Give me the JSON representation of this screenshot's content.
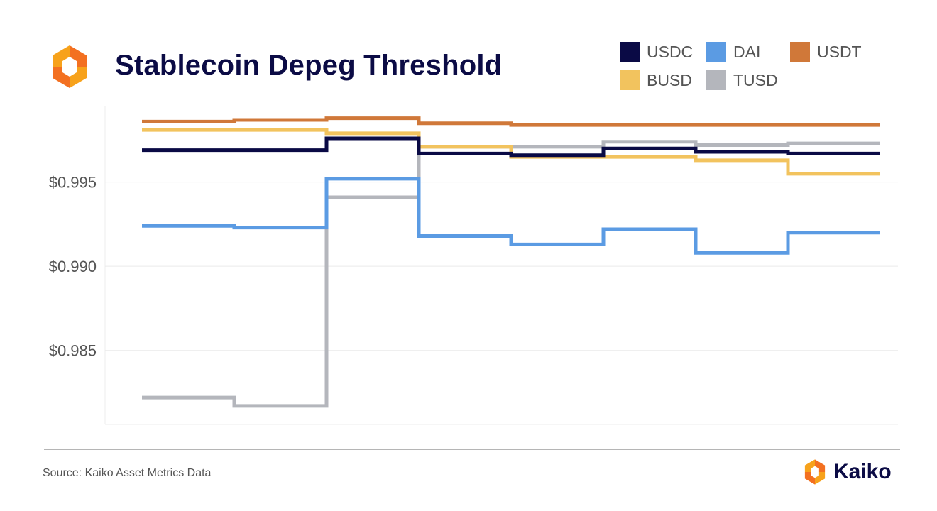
{
  "header": {
    "title": "Stablecoin Depeg Threshold"
  },
  "footer": {
    "source": "Source: Kaiko Asset Metrics Data",
    "brand": "Kaiko"
  },
  "icons": {
    "logo": "kaiko-logo-icon"
  },
  "chart_data": {
    "type": "line",
    "step": true,
    "title": "Stablecoin Depeg Threshold",
    "xlabel": "",
    "ylabel": "",
    "x": [
      1,
      2,
      3,
      4,
      5,
      6,
      7,
      8,
      9
    ],
    "ylim": [
      0.9806,
      0.9995
    ],
    "yticks": [
      0.985,
      0.99,
      0.995
    ],
    "ytick_labels": [
      "$0.985",
      "$0.990",
      "$0.995"
    ],
    "grid": true,
    "legend_position": "top-right",
    "series": [
      {
        "name": "USDC",
        "color": "#0a0a45",
        "values": [
          0.9969,
          0.9969,
          0.9976,
          0.9967,
          0.9966,
          0.997,
          0.9968,
          0.9967,
          0.9967
        ]
      },
      {
        "name": "DAI",
        "color": "#5b9be3",
        "values": [
          0.9924,
          0.9923,
          0.9952,
          0.9918,
          0.9913,
          0.9922,
          0.9908,
          0.992,
          0.992
        ]
      },
      {
        "name": "USDT",
        "color": "#d07839",
        "values": [
          0.9986,
          0.9987,
          0.9988,
          0.9985,
          0.9984,
          0.9984,
          0.9984,
          0.9984,
          0.9984
        ]
      },
      {
        "name": "BUSD",
        "color": "#f2c35e",
        "values": [
          0.9981,
          0.9981,
          0.9979,
          0.9971,
          0.9965,
          0.9965,
          0.9963,
          0.9955,
          0.9955
        ]
      },
      {
        "name": "TUSD",
        "color": "#b4b6bc",
        "values": [
          0.9822,
          0.9817,
          0.9941,
          0.9971,
          0.9971,
          0.9974,
          0.9972,
          0.9973,
          0.9973
        ]
      }
    ]
  }
}
